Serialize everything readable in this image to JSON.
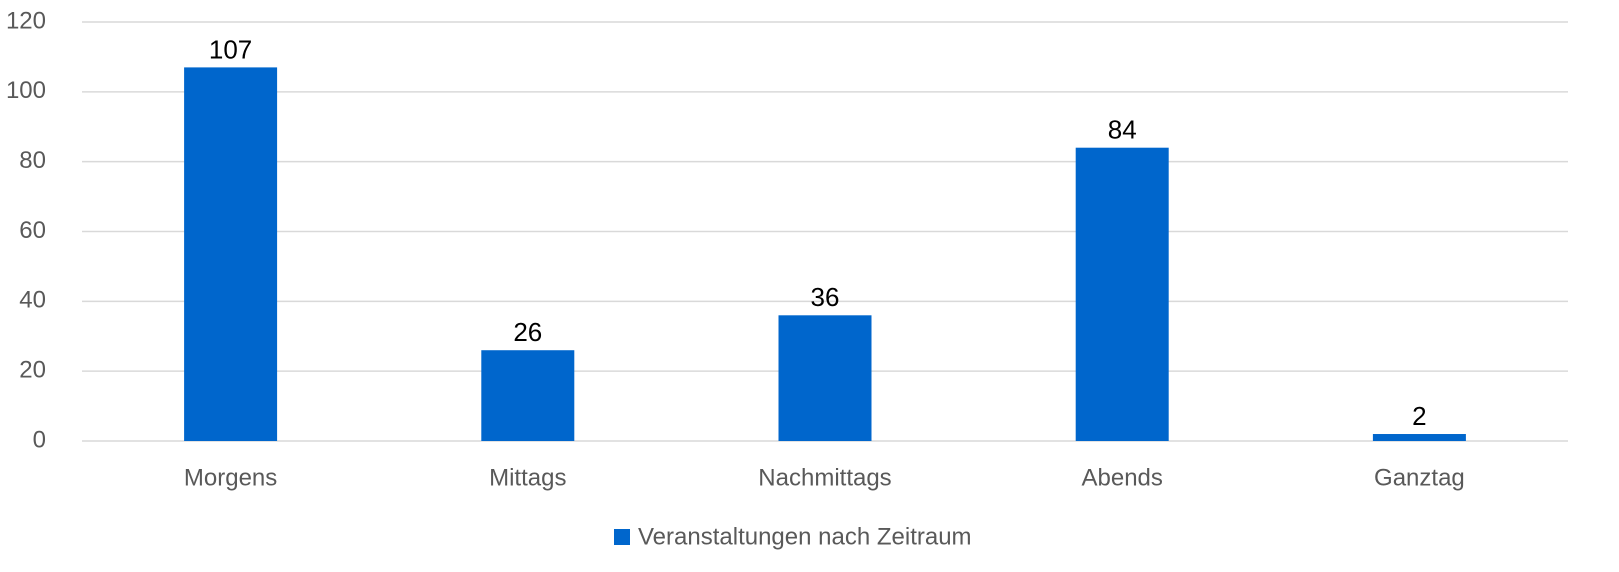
{
  "chart_data": {
    "type": "bar",
    "categories": [
      "Morgens",
      "Mittags",
      "Nachmittags",
      "Abends",
      "Ganztag"
    ],
    "series": [
      {
        "name": "Veranstaltungen nach Zeitraum",
        "color": "#0066cc",
        "values": [
          107,
          26,
          36,
          84,
          2
        ]
      }
    ],
    "ylim": [
      0,
      120
    ],
    "yticks": [
      0,
      20,
      40,
      60,
      80,
      100,
      120
    ],
    "grid": true,
    "legend": "bottom"
  }
}
